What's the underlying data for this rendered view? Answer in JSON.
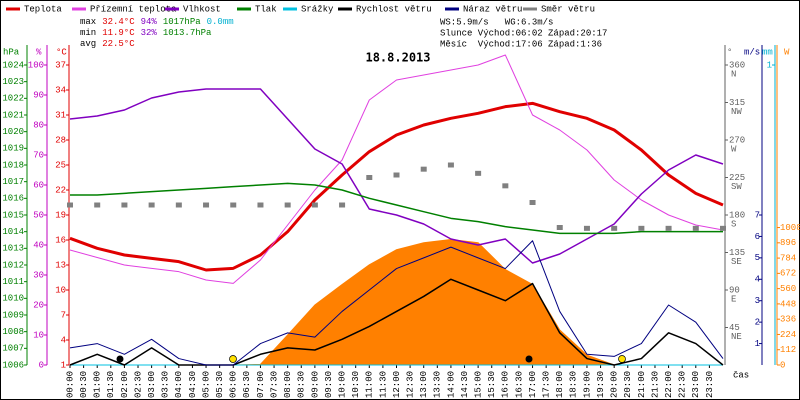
{
  "chart_data": {
    "type": "line",
    "title": "18.8.2013",
    "xlabel": "čas",
    "x": [
      0,
      1,
      2,
      3,
      4,
      5,
      6,
      7,
      8,
      9,
      10,
      11,
      12,
      13,
      14,
      15,
      16,
      17,
      18,
      19,
      20,
      21,
      22,
      23,
      24
    ],
    "xlim": [
      0,
      24
    ],
    "xticks": [
      {
        "value": 0,
        "label": "00:00"
      },
      {
        "value": 0.5,
        "label": "00:30"
      },
      {
        "value": 1,
        "label": "01:00"
      },
      {
        "value": 1.5,
        "label": "01:30"
      },
      {
        "value": 2,
        "label": "02:00"
      },
      {
        "value": 2.5,
        "label": "02:30"
      },
      {
        "value": 3,
        "label": "03:00"
      },
      {
        "value": 3.5,
        "label": "03:30"
      },
      {
        "value": 4,
        "label": "04:00"
      },
      {
        "value": 4.5,
        "label": "04:30"
      },
      {
        "value": 5,
        "label": "05:00"
      },
      {
        "value": 5.5,
        "label": "05:30"
      },
      {
        "value": 6,
        "label": "06:00"
      },
      {
        "value": 6.5,
        "label": "06:30"
      },
      {
        "value": 7,
        "label": "07:00"
      },
      {
        "value": 7.5,
        "label": "07:30"
      },
      {
        "value": 8,
        "label": "08:00"
      },
      {
        "value": 8.5,
        "label": "08:30"
      },
      {
        "value": 9,
        "label": "09:00"
      },
      {
        "value": 9.5,
        "label": "09:30"
      },
      {
        "value": 10,
        "label": "10:00"
      },
      {
        "value": 10.5,
        "label": "10:30"
      },
      {
        "value": 11,
        "label": "11:00"
      },
      {
        "value": 11.5,
        "label": "11:30"
      },
      {
        "value": 12,
        "label": "12:00"
      },
      {
        "value": 12.5,
        "label": "12:30"
      },
      {
        "value": 13,
        "label": "13:00"
      },
      {
        "value": 13.5,
        "label": "13:30"
      },
      {
        "value": 14,
        "label": "14:00"
      },
      {
        "value": 14.5,
        "label": "14:30"
      },
      {
        "value": 15,
        "label": "15:00"
      },
      {
        "value": 15.5,
        "label": "15:30"
      },
      {
        "value": 16,
        "label": "16:00"
      },
      {
        "value": 16.5,
        "label": "16:30"
      },
      {
        "value": 17,
        "label": "17:00"
      },
      {
        "value": 17.5,
        "label": "17:30"
      },
      {
        "value": 18,
        "label": "18:00"
      },
      {
        "value": 18.5,
        "label": "18:30"
      },
      {
        "value": 19,
        "label": "19:00"
      },
      {
        "value": 19.5,
        "label": "19:30"
      },
      {
        "value": 20,
        "label": "20:00"
      },
      {
        "value": 20.5,
        "label": "20:30"
      },
      {
        "value": 21,
        "label": "21:00"
      },
      {
        "value": 21.5,
        "label": "21:30"
      },
      {
        "value": 22,
        "label": "22:00"
      },
      {
        "value": 22.5,
        "label": "22:30"
      },
      {
        "value": 23,
        "label": "23:00"
      },
      {
        "value": 23.5,
        "label": "23:30"
      }
    ],
    "axes": {
      "hpa": {
        "label": "hPa",
        "color": "#008000",
        "lim": [
          1006,
          1024
        ],
        "ticks": [
          1006,
          1007,
          1008,
          1009,
          1010,
          1011,
          1012,
          1013,
          1014,
          1015,
          1016,
          1017,
          1018,
          1019,
          1020,
          1021,
          1022,
          1023,
          1024
        ]
      },
      "pct": {
        "label": "%",
        "color": "#c000c0",
        "lim": [
          0,
          100
        ],
        "ticks": [
          0,
          10,
          20,
          30,
          40,
          50,
          60,
          70,
          80,
          90,
          100
        ]
      },
      "degc": {
        "label": "°C",
        "color": "#e00000",
        "lim": [
          1,
          37
        ],
        "ticks": [
          1,
          4,
          7,
          10,
          13,
          16,
          19,
          22,
          25,
          28,
          31,
          34,
          37
        ]
      },
      "deg": {
        "label": "°",
        "color": "#606060",
        "lim": [
          0,
          360
        ],
        "ticks": [
          45,
          90,
          135,
          180,
          225,
          270,
          315,
          360
        ],
        "compass": [
          "NE",
          "E",
          "SE",
          "S",
          "SW",
          "W",
          "NW",
          "N"
        ]
      },
      "ms": {
        "label": "m/s",
        "color": "#000080",
        "lim": [
          0,
          14
        ],
        "ticks": [
          1,
          2,
          3,
          4,
          5,
          6,
          7
        ]
      },
      "mm": {
        "label": "mm",
        "color": "#00b0d0",
        "lim": [
          0,
          1
        ],
        "ticks": [
          1
        ]
      },
      "w": {
        "label": "W",
        "color": "#ff8000",
        "lim": [
          0,
          2200
        ],
        "ticks": [
          0,
          112,
          224,
          336,
          448,
          560,
          672,
          784,
          896,
          1008
        ]
      }
    },
    "radiation": {
      "color": "#ff8000",
      "axis": "w",
      "values": [
        0,
        0,
        0,
        0,
        0,
        0,
        0,
        5,
        220,
        440,
        590,
        735,
        845,
        897,
        920,
        897,
        700,
        590,
        257,
        73,
        0,
        0,
        0,
        0,
        0
      ]
    },
    "series": [
      {
        "name": "Teplota",
        "color": "#e00000",
        "axis": "degc",
        "width": 3,
        "values": [
          16.2,
          15,
          14.2,
          13.8,
          13.4,
          12.4,
          12.6,
          14.2,
          17,
          20.8,
          23.8,
          26.6,
          28.6,
          29.8,
          30.6,
          31.2,
          32,
          32.4,
          31.4,
          30.6,
          29.2,
          26.8,
          23.8,
          21.6,
          20.2
        ]
      },
      {
        "name": "Přízemní teplota",
        "color": "#e040e0",
        "axis": "degc",
        "width": 1,
        "values": [
          14.8,
          13.9,
          13,
          12.6,
          12.2,
          11.2,
          10.8,
          13.6,
          17.8,
          22,
          25.6,
          32.8,
          35.2,
          35.8,
          36.4,
          37,
          38.2,
          31,
          29.2,
          26.8,
          23.2,
          20.8,
          19,
          17.8,
          17.2
        ]
      },
      {
        "name": "Vlhkost",
        "color": "#8000c0",
        "axis": "pct",
        "width": 1.5,
        "values": [
          82,
          83,
          85,
          89,
          91,
          92,
          92,
          92,
          82,
          72,
          67,
          52,
          50,
          47,
          42,
          40,
          42,
          34,
          37,
          42,
          47,
          57,
          65,
          70,
          67
        ]
      },
      {
        "name": "Tlak",
        "color": "#008000",
        "axis": "hpa",
        "width": 1.5,
        "values": [
          1016.2,
          1016.2,
          1016.3,
          1016.4,
          1016.5,
          1016.6,
          1016.7,
          1016.8,
          1016.9,
          1016.8,
          1016.5,
          1016,
          1015.6,
          1015.2,
          1014.8,
          1014.6,
          1014.3,
          1014.1,
          1013.9,
          1013.9,
          1013.9,
          1014,
          1014,
          1014,
          1014
        ]
      },
      {
        "name": "Srážky",
        "color": "#00c0e0",
        "axis": "mm",
        "width": 1,
        "values": [
          0,
          0,
          0,
          0,
          0,
          0,
          0,
          0,
          0,
          0,
          0,
          0,
          0,
          0,
          0,
          0,
          0,
          0,
          0,
          0,
          0,
          0,
          0,
          0,
          0
        ]
      },
      {
        "name": "Rychlost větru",
        "color": "#000000",
        "axis": "ms",
        "width": 1.5,
        "values": [
          0,
          0.5,
          0,
          0.8,
          0,
          0,
          0,
          0.5,
          0.8,
          0.7,
          1.2,
          1.8,
          2.5,
          3.2,
          4,
          3.5,
          3,
          3.8,
          1.5,
          0.3,
          0,
          0.3,
          1.5,
          1,
          0
        ]
      },
      {
        "name": "Náraz větru",
        "color": "#000080",
        "axis": "ms",
        "width": 1,
        "values": [
          0.8,
          1,
          0.5,
          1.2,
          0.3,
          0,
          0,
          1,
          1.5,
          1.3,
          2.5,
          3.5,
          4.5,
          5,
          5.5,
          5,
          4.5,
          5.8,
          2.5,
          0.5,
          0.4,
          1,
          2.8,
          2,
          0.3
        ]
      },
      {
        "name": "Směr větru",
        "color": "#808080",
        "axis": "deg",
        "width": 4,
        "values": [
          192,
          192,
          192,
          192,
          192,
          192,
          192,
          192,
          192,
          192,
          192,
          225,
          228,
          235,
          240,
          230,
          215,
          195,
          165,
          164,
          164,
          164,
          164,
          164,
          164
        ]
      }
    ],
    "stats": [
      [
        {
          "text": "max",
          "color": "#000000"
        },
        {
          "text": "32.4°C",
          "color": "#e00000"
        },
        {
          "text": "94%",
          "color": "#8000c0"
        },
        {
          "text": "1017hPa",
          "color": "#008000"
        },
        {
          "text": "0.0mm",
          "color": "#00b0d0"
        }
      ],
      [
        {
          "text": "min",
          "color": "#000000"
        },
        {
          "text": "11.9°C",
          "color": "#e00000"
        },
        {
          "text": "32%",
          "color": "#8000c0"
        },
        {
          "text": "1013.7hPa",
          "color": "#008000"
        }
      ],
      [
        {
          "text": "avg",
          "color": "#000000"
        },
        {
          "text": "22.5°C",
          "color": "#e00000"
        }
      ]
    ],
    "info": [
      "WS:5.9m/s   WG:6.3m/s",
      "Slunce Východ:06:02 Západ:20:17",
      "Měsíc  Východ:17:06 Západ:1:36"
    ]
  }
}
